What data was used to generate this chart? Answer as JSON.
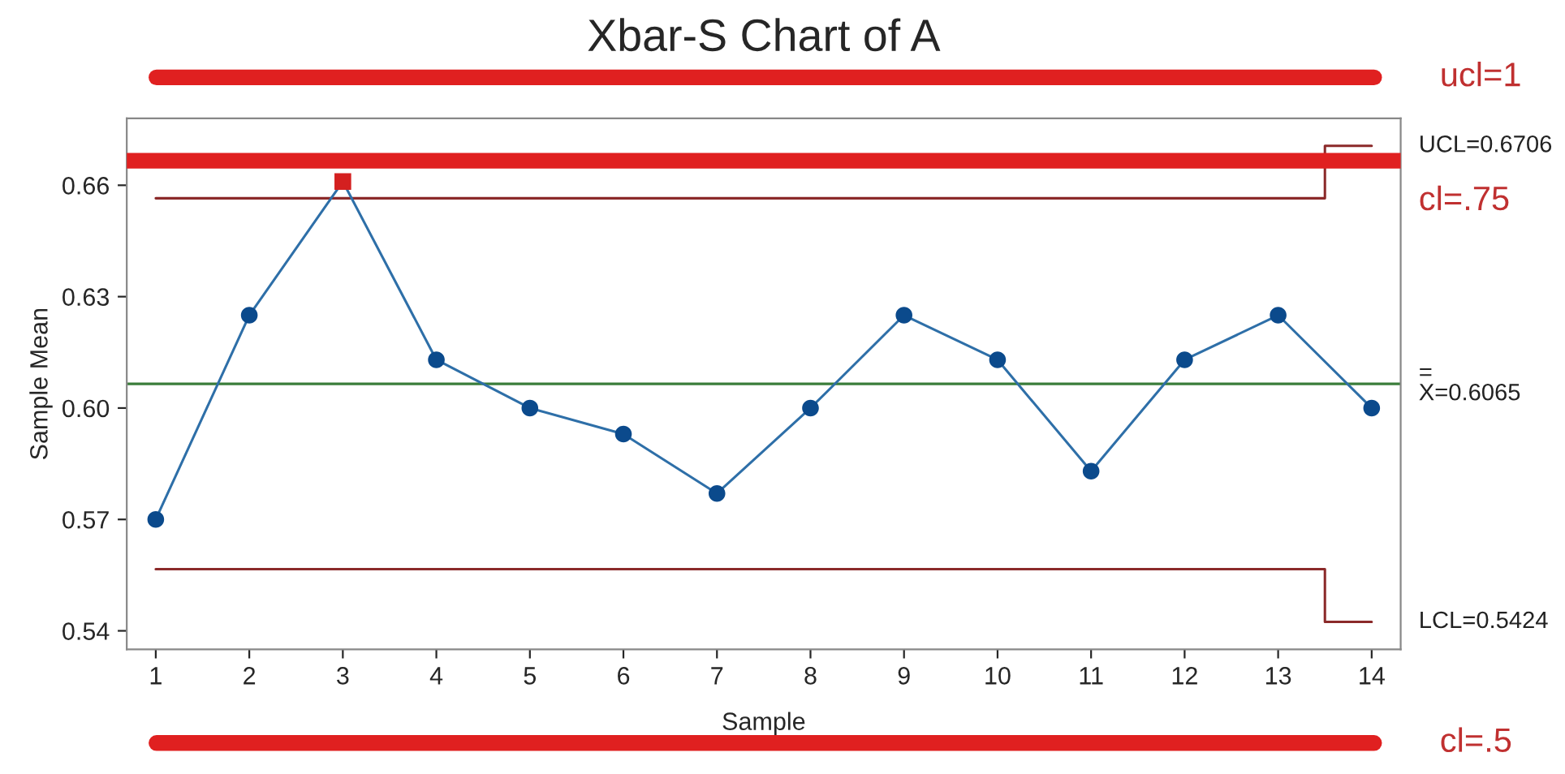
{
  "chart_data": {
    "type": "line",
    "title": "Xbar-S Chart of A",
    "xlabel": "Sample",
    "ylabel": "Sample Mean",
    "x": [
      1,
      2,
      3,
      4,
      5,
      6,
      7,
      8,
      9,
      10,
      11,
      12,
      13,
      14
    ],
    "series": [
      {
        "color": "#2e6fa8",
        "colors": [
          "#0b4a8c",
          "#0b4a8c",
          "#d42020",
          "#0b4a8c",
          "#0b4a8c",
          "#0b4a8c",
          "#0b4a8c",
          "#0b4a8c",
          "#0b4a8c",
          "#0b4a8c",
          "#0b4a8c",
          "#0b4a8c",
          "#0b4a8c",
          "#0b4a8c"
        ],
        "marker": "circle",
        "values": [
          0.57,
          0.625,
          0.661,
          0.613,
          0.6,
          0.593,
          0.577,
          0.6,
          0.625,
          0.613,
          0.583,
          0.613,
          0.625,
          0.6
        ]
      },
      {
        "type": "step",
        "name": "UCL=0.6706",
        "color": "#8b2a2a",
        "values": [
          0.6565,
          0.6565,
          0.6565,
          0.6565,
          0.6565,
          0.6565,
          0.6565,
          0.6565,
          0.6565,
          0.6565,
          0.6565,
          0.6565,
          0.6565,
          0.6706
        ]
      },
      {
        "type": "step",
        "name": "LCL=0.5424",
        "color": "#8b2a2a",
        "values": [
          0.5566,
          0.5566,
          0.5566,
          0.5566,
          0.5566,
          0.5566,
          0.5566,
          0.5566,
          0.5566,
          0.5566,
          0.5566,
          0.5566,
          0.5566,
          0.5424
        ]
      }
    ],
    "ref_lines": [
      {
        "axis": "y",
        "value": 0.6065,
        "label": "=\nX=0.6065",
        "color": "#3a7d3a"
      },
      {
        "axis": "y",
        "value": 0.6666,
        "label": "cl=.75",
        "color": "#e02020"
      }
    ],
    "annotations": [
      "ucl=1",
      "cl=.5"
    ],
    "xlim": [
      0.69,
      14.31
    ],
    "ylim": [
      0.535,
      0.678
    ],
    "xticks": [
      1,
      2,
      3,
      4,
      5,
      6,
      7,
      8,
      9,
      10,
      11,
      12,
      13,
      14
    ],
    "yticks": [
      {
        "value": 0.54,
        "label": "0.54"
      },
      {
        "value": 0.57,
        "label": "0.57"
      },
      {
        "value": 0.6,
        "label": "0.60"
      },
      {
        "value": 0.63,
        "label": "0.63"
      },
      {
        "value": 0.66,
        "label": "0.66"
      }
    ],
    "grid": false,
    "legend": false
  }
}
